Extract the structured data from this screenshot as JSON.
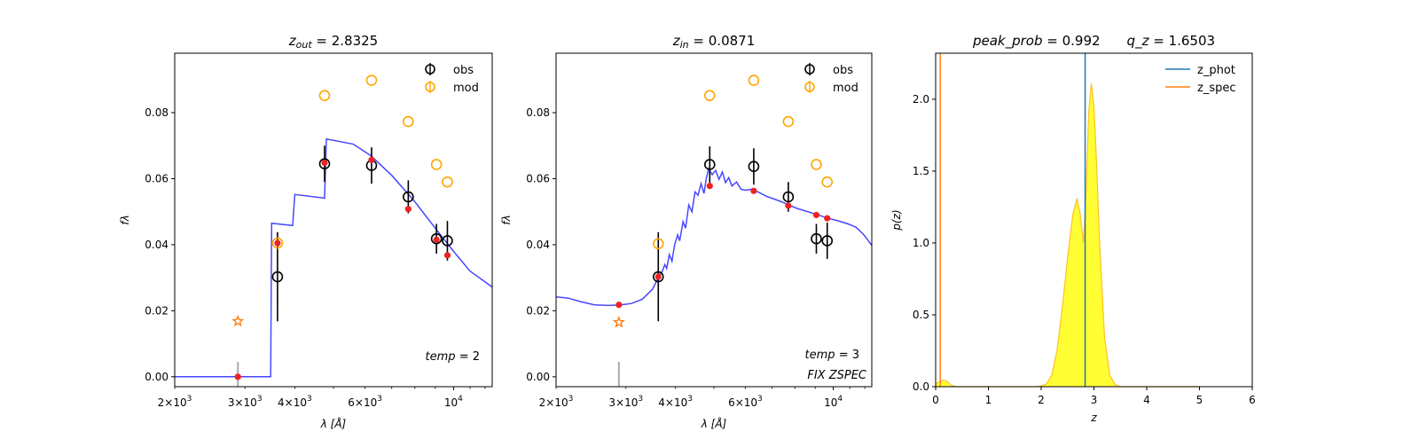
{
  "chart_data": [
    {
      "type": "scatter",
      "title": "z_out = 2.8325",
      "title_main": "z",
      "title_sub": "out",
      "title_rest": " = 2.8325",
      "xlabel": "λ [Å]",
      "ylabel": "fλ",
      "xscale": "log",
      "xlim": [
        2000,
        12500
      ],
      "ylim": [
        -0.003,
        0.098
      ],
      "xticks": [
        {
          "v": 2000,
          "m": "2",
          "e": "3"
        },
        {
          "v": 3000,
          "m": "3",
          "e": "3"
        },
        {
          "v": 4000,
          "m": "4",
          "e": "3"
        },
        {
          "v": 6000,
          "m": "6",
          "e": "3"
        },
        {
          "v": 10000,
          "m": "10",
          "e": "4",
          "pow_only": true
        }
      ],
      "yticks": [
        "0.00",
        "0.02",
        "0.04",
        "0.06",
        "0.08"
      ],
      "legend": [
        "obs",
        "mod"
      ],
      "legend_position": "top-right",
      "annotation": "temp = 2",
      "template_curve": [
        [
          2000,
          0.0
        ],
        [
          3480,
          0.0
        ],
        [
          3500,
          0.0465
        ],
        [
          3950,
          0.0458
        ],
        [
          4000,
          0.0552
        ],
        [
          4750,
          0.0541
        ],
        [
          4800,
          0.072
        ],
        [
          5600,
          0.0705
        ],
        [
          6200,
          0.067
        ],
        [
          7000,
          0.061
        ],
        [
          8000,
          0.053
        ],
        [
          9000,
          0.045
        ],
        [
          10000,
          0.038
        ],
        [
          11000,
          0.032
        ],
        [
          12500,
          0.0272
        ]
      ],
      "observed": [
        {
          "x": 3620,
          "y": 0.0303,
          "err": 0.0135
        },
        {
          "x": 4750,
          "y": 0.0645,
          "err": 0.0055
        },
        {
          "x": 6230,
          "y": 0.064,
          "err": 0.0055
        },
        {
          "x": 7700,
          "y": 0.0545,
          "err": 0.005
        },
        {
          "x": 9060,
          "y": 0.0418,
          "err": 0.0045
        },
        {
          "x": 9650,
          "y": 0.0412,
          "err": 0.006
        }
      ],
      "model": [
        {
          "x": 3620,
          "y": 0.0405
        },
        {
          "x": 4750,
          "y": 0.0852
        },
        {
          "x": 6230,
          "y": 0.0898
        },
        {
          "x": 7700,
          "y": 0.0773
        },
        {
          "x": 9060,
          "y": 0.0643
        },
        {
          "x": 9650,
          "y": 0.059
        }
      ],
      "template_points": [
        {
          "x": 2880,
          "y": 0.0
        },
        {
          "x": 3620,
          "y": 0.0405
        },
        {
          "x": 4750,
          "y": 0.0648
        },
        {
          "x": 6230,
          "y": 0.0657
        },
        {
          "x": 7700,
          "y": 0.0508
        },
        {
          "x": 9060,
          "y": 0.0415
        },
        {
          "x": 9650,
          "y": 0.0368
        }
      ],
      "upper_limit": {
        "x": 2880,
        "y": 0.0168
      },
      "limit_bar": {
        "x": 2880,
        "y0": -0.003,
        "y1": 0.0045
      }
    },
    {
      "type": "scatter",
      "title": "z_in = 0.0871",
      "title_main": "z",
      "title_sub": "in",
      "title_rest": " = 0.0871",
      "xlabel": "λ [Å]",
      "ylabel": "fλ",
      "xscale": "log",
      "xlim": [
        2000,
        12500
      ],
      "ylim": [
        -0.003,
        0.098
      ],
      "xticks": [
        {
          "v": 2000,
          "m": "2",
          "e": "3"
        },
        {
          "v": 3000,
          "m": "3",
          "e": "3"
        },
        {
          "v": 4000,
          "m": "4",
          "e": "3"
        },
        {
          "v": 6000,
          "m": "6",
          "e": "3"
        },
        {
          "v": 10000,
          "m": "10",
          "e": "4",
          "pow_only": true
        }
      ],
      "yticks": [
        "0.00",
        "0.02",
        "0.04",
        "0.06",
        "0.08"
      ],
      "legend": [
        "obs",
        "mod"
      ],
      "legend_position": "top-right",
      "annotation": "temp = 3",
      "annotation2": "FIX ZSPEC",
      "template_curve": [
        [
          2000,
          0.0242
        ],
        [
          2150,
          0.0238
        ],
        [
          2300,
          0.0228
        ],
        [
          2500,
          0.0218
        ],
        [
          2700,
          0.0216
        ],
        [
          2880,
          0.0217
        ],
        [
          3100,
          0.0222
        ],
        [
          3300,
          0.0235
        ],
        [
          3500,
          0.0265
        ],
        [
          3620,
          0.03
        ],
        [
          3700,
          0.0318
        ],
        [
          3760,
          0.034
        ],
        [
          3800,
          0.0328
        ],
        [
          3860,
          0.037
        ],
        [
          3920,
          0.035
        ],
        [
          3980,
          0.04
        ],
        [
          4050,
          0.043
        ],
        [
          4100,
          0.0412
        ],
        [
          4180,
          0.047
        ],
        [
          4240,
          0.045
        ],
        [
          4320,
          0.052
        ],
        [
          4400,
          0.05
        ],
        [
          4480,
          0.056
        ],
        [
          4560,
          0.055
        ],
        [
          4640,
          0.0585
        ],
        [
          4720,
          0.0555
        ],
        [
          4780,
          0.06
        ],
        [
          4850,
          0.063
        ],
        [
          4950,
          0.0612
        ],
        [
          5050,
          0.0625
        ],
        [
          5150,
          0.0598
        ],
        [
          5250,
          0.062
        ],
        [
          5350,
          0.0588
        ],
        [
          5450,
          0.0603
        ],
        [
          5550,
          0.0578
        ],
        [
          5700,
          0.059
        ],
        [
          5850,
          0.0568
        ],
        [
          6000,
          0.0565
        ],
        [
          6230,
          0.0568
        ],
        [
          6500,
          0.0558
        ],
        [
          6800,
          0.0546
        ],
        [
          7100,
          0.0538
        ],
        [
          7400,
          0.053
        ],
        [
          7700,
          0.0521
        ],
        [
          8100,
          0.051
        ],
        [
          8500,
          0.0502
        ],
        [
          9060,
          0.0492
        ],
        [
          9650,
          0.0481
        ],
        [
          10300,
          0.0472
        ],
        [
          10900,
          0.0463
        ],
        [
          11400,
          0.0453
        ],
        [
          11900,
          0.0432
        ],
        [
          12200,
          0.0415
        ],
        [
          12500,
          0.0398
        ]
      ],
      "observed": [
        {
          "x": 3620,
          "y": 0.0303,
          "err": 0.0135
        },
        {
          "x": 4880,
          "y": 0.0643,
          "err": 0.0055
        },
        {
          "x": 6300,
          "y": 0.0637,
          "err": 0.0055
        },
        {
          "x": 7700,
          "y": 0.0545,
          "err": 0.0045
        },
        {
          "x": 9060,
          "y": 0.0418,
          "err": 0.0045
        },
        {
          "x": 9650,
          "y": 0.0412,
          "err": 0.0055
        }
      ],
      "model": [
        {
          "x": 3620,
          "y": 0.0403
        },
        {
          "x": 4880,
          "y": 0.0852
        },
        {
          "x": 6300,
          "y": 0.0898
        },
        {
          "x": 7700,
          "y": 0.0773
        },
        {
          "x": 9060,
          "y": 0.0643
        },
        {
          "x": 9650,
          "y": 0.059
        }
      ],
      "template_points": [
        {
          "x": 2880,
          "y": 0.0218
        },
        {
          "x": 3620,
          "y": 0.0303
        },
        {
          "x": 4880,
          "y": 0.0578
        },
        {
          "x": 6300,
          "y": 0.0563
        },
        {
          "x": 7700,
          "y": 0.0518
        },
        {
          "x": 9060,
          "y": 0.049
        },
        {
          "x": 9650,
          "y": 0.048
        }
      ],
      "upper_limit": {
        "x": 2880,
        "y": 0.0165
      },
      "limit_bar": {
        "x": 2880,
        "y0": -0.003,
        "y1": 0.0045
      }
    },
    {
      "type": "area",
      "title": "peak_prob = 0.992     q_z = 1.6503",
      "title_parts": [
        "peak_prob",
        " = 0.992",
        "q",
        "z",
        " = 1.6503"
      ],
      "xlabel": "z",
      "ylabel": "p(z)",
      "xlim": [
        0,
        6
      ],
      "ylim": [
        0,
        2.32
      ],
      "xticks": [
        "0",
        "1",
        "2",
        "3",
        "4",
        "5",
        "6"
      ],
      "yticks": [
        "0.0",
        "0.5",
        "1.0",
        "1.5",
        "2.0"
      ],
      "legend": [
        "z_phot",
        "z_spec"
      ],
      "legend_position": "top-right",
      "z_phot": 2.8325,
      "z_spec": 0.0871,
      "pdf": [
        [
          0.0,
          0.02
        ],
        [
          0.05,
          0.03
        ],
        [
          0.1,
          0.04
        ],
        [
          0.15,
          0.045
        ],
        [
          0.2,
          0.04
        ],
        [
          0.25,
          0.025
        ],
        [
          0.3,
          0.01
        ],
        [
          0.35,
          0.003
        ],
        [
          0.4,
          0.0
        ],
        [
          1.9,
          0.0
        ],
        [
          2.0,
          0.005
        ],
        [
          2.1,
          0.02
        ],
        [
          2.2,
          0.08
        ],
        [
          2.3,
          0.25
        ],
        [
          2.4,
          0.55
        ],
        [
          2.5,
          0.9
        ],
        [
          2.6,
          1.2
        ],
        [
          2.68,
          1.31
        ],
        [
          2.74,
          1.2
        ],
        [
          2.8,
          1.0
        ],
        [
          2.85,
          1.35
        ],
        [
          2.9,
          1.9
        ],
        [
          2.95,
          2.11
        ],
        [
          3.0,
          1.95
        ],
        [
          3.05,
          1.55
        ],
        [
          3.1,
          1.05
        ],
        [
          3.2,
          0.35
        ],
        [
          3.3,
          0.08
        ],
        [
          3.4,
          0.015
        ],
        [
          3.5,
          0.0
        ],
        [
          5.0,
          0.0
        ]
      ],
      "colors": {
        "z_phot": "#1f77b4",
        "z_spec": "#ff7f0e",
        "pdf_fill": "#ffff33",
        "pdf_edge": "#ffbf2a"
      }
    }
  ],
  "colors": {
    "template": "#3333ff",
    "observed": "#000000",
    "model": "#ffa500",
    "template_points": "#ee2222",
    "upper_limit": "#ff7f0e",
    "limit_bar": "#aaaaaa"
  }
}
